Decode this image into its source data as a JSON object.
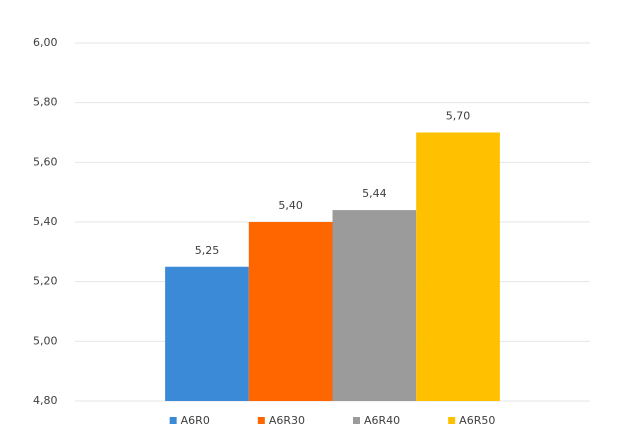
{
  "chart_data": {
    "type": "bar",
    "categories": [
      null
    ],
    "series": [
      {
        "name": "A6R0",
        "color": "#3a8ad8",
        "values": [
          5.25
        ],
        "value_labels": [
          "5,25"
        ]
      },
      {
        "name": "A6R30",
        "color": "#ff6600",
        "values": [
          5.4
        ],
        "value_labels": [
          "5,40"
        ]
      },
      {
        "name": "A6R40",
        "color": "#9b9b9b",
        "values": [
          5.44
        ],
        "value_labels": [
          "5,44"
        ]
      },
      {
        "name": "A6R50",
        "color": "#ffc000",
        "values": [
          5.7
        ],
        "value_labels": [
          "5,70"
        ]
      }
    ],
    "ylim": [
      4.8,
      6.0
    ],
    "yticks": [
      {
        "value": 4.8,
        "label": "4,80"
      },
      {
        "value": 5.0,
        "label": "5,00"
      },
      {
        "value": 5.2,
        "label": "5,20"
      },
      {
        "value": 5.4,
        "label": "5,40"
      },
      {
        "value": 5.6,
        "label": "5,60"
      },
      {
        "value": 5.8,
        "label": "5,80"
      },
      {
        "value": 6.0,
        "label": "6,00"
      }
    ],
    "grid": true,
    "legend": "bottom"
  }
}
